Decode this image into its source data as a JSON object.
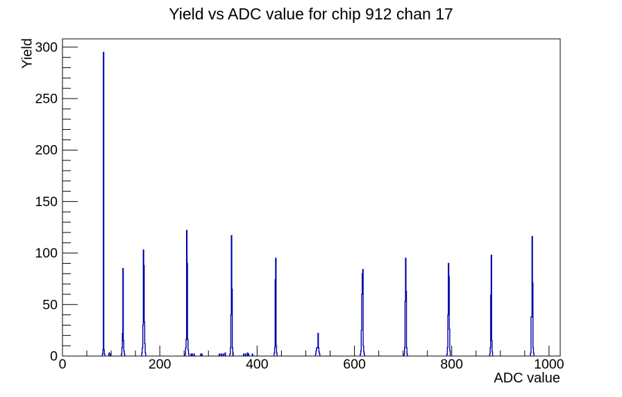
{
  "chart_data": {
    "type": "bar",
    "title": "Yield vs ADC value for chip 912 chan 17",
    "xlabel": "ADC value",
    "ylabel": "Yield",
    "xlim": [
      0,
      1023
    ],
    "ylim": [
      0,
      308
    ],
    "x_major_ticks": [
      0,
      200,
      400,
      600,
      800,
      1000
    ],
    "x_minor_step": 50,
    "y_major_ticks": [
      0,
      50,
      100,
      150,
      200,
      250,
      300
    ],
    "y_minor_step": 10,
    "grid": false,
    "legend": false,
    "line_color": "#0000a8",
    "axis_color": "#000000",
    "background_color": "#ffffff",
    "bin_width": 1,
    "bars": [
      [
        82,
        2
      ],
      [
        83,
        6
      ],
      [
        84,
        295
      ],
      [
        85,
        6
      ],
      [
        86,
        2
      ],
      [
        95,
        2
      ],
      [
        96,
        3
      ],
      [
        97,
        2
      ],
      [
        121,
        2
      ],
      [
        122,
        8
      ],
      [
        123,
        22
      ],
      [
        124,
        85
      ],
      [
        125,
        15
      ],
      [
        126,
        5
      ],
      [
        127,
        2
      ],
      [
        163,
        3
      ],
      [
        164,
        8
      ],
      [
        165,
        30
      ],
      [
        166,
        103
      ],
      [
        167,
        88
      ],
      [
        168,
        33
      ],
      [
        169,
        12
      ],
      [
        170,
        3
      ],
      [
        252,
        2
      ],
      [
        253,
        8
      ],
      [
        254,
        16
      ],
      [
        255,
        122
      ],
      [
        256,
        90
      ],
      [
        257,
        16
      ],
      [
        258,
        6
      ],
      [
        259,
        2
      ],
      [
        264,
        2
      ],
      [
        266,
        2
      ],
      [
        270,
        2
      ],
      [
        284,
        2
      ],
      [
        286,
        2
      ],
      [
        322,
        2
      ],
      [
        326,
        2
      ],
      [
        330,
        2
      ],
      [
        334,
        3
      ],
      [
        344,
        2
      ],
      [
        345,
        8
      ],
      [
        346,
        40
      ],
      [
        347,
        117
      ],
      [
        348,
        65
      ],
      [
        349,
        8
      ],
      [
        350,
        3
      ],
      [
        372,
        2
      ],
      [
        376,
        2
      ],
      [
        380,
        3
      ],
      [
        382,
        2
      ],
      [
        390,
        2
      ],
      [
        435,
        3
      ],
      [
        436,
        8
      ],
      [
        437,
        74
      ],
      [
        438,
        95
      ],
      [
        439,
        10
      ],
      [
        440,
        3
      ],
      [
        520,
        2
      ],
      [
        521,
        5
      ],
      [
        522,
        8
      ],
      [
        523,
        8
      ],
      [
        524,
        8
      ],
      [
        525,
        22
      ],
      [
        526,
        8
      ],
      [
        527,
        4
      ],
      [
        528,
        2
      ],
      [
        612,
        2
      ],
      [
        613,
        5
      ],
      [
        614,
        25
      ],
      [
        615,
        60
      ],
      [
        616,
        80
      ],
      [
        617,
        84
      ],
      [
        618,
        10
      ],
      [
        619,
        4
      ],
      [
        620,
        2
      ],
      [
        702,
        2
      ],
      [
        703,
        8
      ],
      [
        704,
        53
      ],
      [
        705,
        95
      ],
      [
        706,
        63
      ],
      [
        707,
        8
      ],
      [
        708,
        2
      ],
      [
        790,
        2
      ],
      [
        791,
        8
      ],
      [
        792,
        40
      ],
      [
        793,
        90
      ],
      [
        794,
        77
      ],
      [
        795,
        26
      ],
      [
        796,
        5
      ],
      [
        878,
        2
      ],
      [
        879,
        8
      ],
      [
        880,
        59
      ],
      [
        881,
        98
      ],
      [
        882,
        15
      ],
      [
        883,
        4
      ],
      [
        962,
        3
      ],
      [
        963,
        38
      ],
      [
        964,
        38
      ],
      [
        965,
        116
      ],
      [
        966,
        71
      ],
      [
        967,
        8
      ],
      [
        968,
        3
      ]
    ]
  }
}
